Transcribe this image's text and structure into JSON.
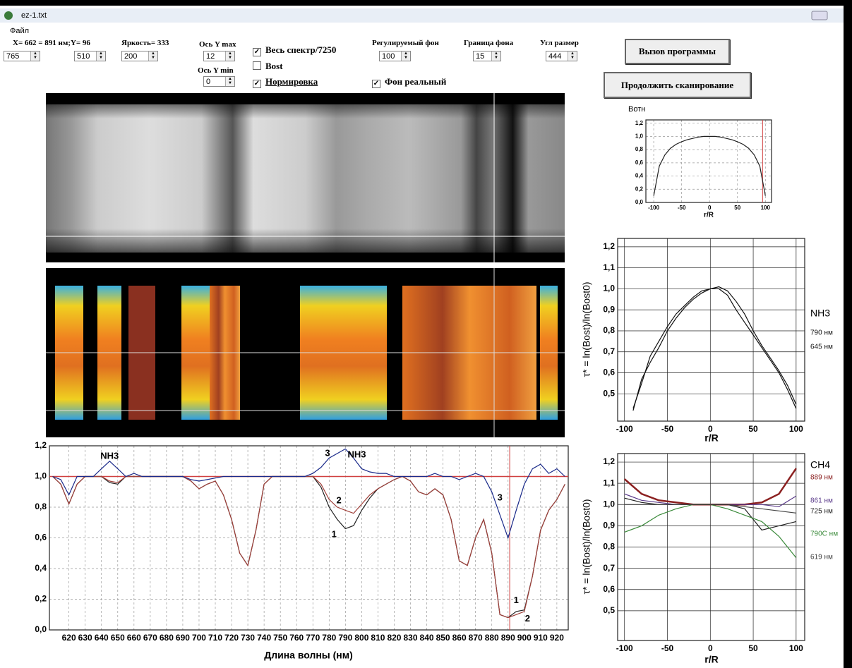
{
  "ui": {
    "window": {
      "title": "ez-1.txt"
    },
    "menu": [
      "Файл"
    ],
    "status": "X= 662 = 891 нм;Y= 96",
    "spinners": [
      {
        "value": 765
      },
      {
        "value": 510
      },
      {
        "label": "Яркость= 333",
        "value": 200
      },
      {
        "label": "Ось Y max",
        "value": 12
      },
      {
        "label": "Ось Y min",
        "value": 0
      },
      {
        "label": "Регулируемый фон",
        "value": 100
      },
      {
        "label": "Граница фона",
        "value": 15
      },
      {
        "label": "Угл размер",
        "value": 444
      }
    ],
    "checkboxes": [
      {
        "label": "Весь спектр/7250",
        "checked": true
      },
      {
        "label": "Bost",
        "checked": false
      },
      {
        "label": "Нормировка",
        "checked": true
      },
      {
        "label": "Фон реальный",
        "checked": true
      }
    ],
    "buttons": [
      "Вызов программы",
      "Продолжить сканирование"
    ]
  },
  "chart_data": [
    {
      "type": "line",
      "xlabel": "Длина волны (нм)",
      "grid": "dashed",
      "xlim": [
        608,
        927
      ],
      "xticks": [
        620,
        630,
        640,
        650,
        660,
        670,
        680,
        690,
        700,
        710,
        720,
        730,
        740,
        750,
        760,
        770,
        780,
        790,
        800,
        810,
        820,
        830,
        840,
        850,
        860,
        870,
        880,
        890,
        900,
        910,
        920
      ],
      "ylim": [
        0,
        1.2
      ],
      "yticks": [
        {
          "value": 0,
          "label": "0,0"
        },
        {
          "value": 0.2,
          "label": "0,2"
        },
        {
          "value": 0.4,
          "label": "0,4"
        },
        {
          "value": 0.6,
          "label": "0,6"
        },
        {
          "value": 0.8,
          "label": "0,8"
        },
        {
          "value": 1.0,
          "label": "1,0"
        },
        {
          "value": 1.2,
          "label": "1,2"
        }
      ],
      "hline": 1.0,
      "vline": 891,
      "ref_color": "#d04040",
      "x": [
        610,
        615,
        620,
        625,
        630,
        635,
        640,
        645,
        650,
        655,
        660,
        665,
        670,
        675,
        680,
        685,
        690,
        695,
        700,
        705,
        710,
        715,
        720,
        725,
        730,
        735,
        740,
        745,
        750,
        755,
        760,
        765,
        770,
        775,
        780,
        785,
        790,
        795,
        800,
        805,
        810,
        815,
        820,
        825,
        830,
        835,
        840,
        845,
        850,
        855,
        860,
        865,
        870,
        875,
        880,
        885,
        890,
        895,
        900,
        905,
        910,
        915,
        920,
        925
      ],
      "series": [
        {
          "color": "#222222",
          "values": [
            1.0,
            0.95,
            0.82,
            0.95,
            1.0,
            1.0,
            1.0,
            0.96,
            0.95,
            1.0,
            1.0,
            1.0,
            1.0,
            1.0,
            1.0,
            1.0,
            1.0,
            0.97,
            0.92,
            0.95,
            0.97,
            0.88,
            0.72,
            0.5,
            0.42,
            0.65,
            0.95,
            1.0,
            1.0,
            1.0,
            1.0,
            1.0,
            1.0,
            0.93,
            0.8,
            0.72,
            0.66,
            0.68,
            0.78,
            0.86,
            0.92,
            0.95,
            0.98,
            1.0,
            0.97,
            0.9,
            0.88,
            0.92,
            0.88,
            0.72,
            0.45,
            0.42,
            0.6,
            0.72,
            0.5,
            0.1,
            0.08,
            0.12,
            0.13,
            0.35,
            0.65,
            0.78,
            0.85,
            0.95
          ]
        },
        {
          "color": "#a0403a",
          "values": [
            1.0,
            0.95,
            0.82,
            0.95,
            1.0,
            1.0,
            1.0,
            0.97,
            0.96,
            1.0,
            1.0,
            1.0,
            1.0,
            1.0,
            1.0,
            1.0,
            1.0,
            0.97,
            0.92,
            0.95,
            0.97,
            0.88,
            0.72,
            0.5,
            0.42,
            0.65,
            0.95,
            1.0,
            1.0,
            1.0,
            1.0,
            1.0,
            1.0,
            0.95,
            0.85,
            0.8,
            0.78,
            0.76,
            0.82,
            0.88,
            0.92,
            0.95,
            0.98,
            1.0,
            0.97,
            0.9,
            0.88,
            0.92,
            0.88,
            0.72,
            0.45,
            0.42,
            0.6,
            0.72,
            0.5,
            0.1,
            0.08,
            0.1,
            0.12,
            0.35,
            0.65,
            0.78,
            0.85,
            0.95
          ]
        },
        {
          "color": "#1a2a8a",
          "values": [
            1.0,
            0.98,
            0.88,
            1.0,
            1.0,
            1.0,
            1.05,
            1.1,
            1.05,
            1.0,
            1.02,
            1.0,
            1.0,
            1.0,
            1.0,
            1.0,
            1.0,
            0.98,
            0.97,
            0.98,
            0.99,
            1.0,
            1.0,
            1.0,
            1.0,
            1.0,
            1.0,
            1.0,
            1.0,
            1.0,
            1.0,
            1.0,
            1.02,
            1.06,
            1.12,
            1.15,
            1.18,
            1.12,
            1.05,
            1.03,
            1.02,
            1.02,
            1.0,
            1.0,
            1.0,
            1.0,
            1.0,
            1.02,
            1.0,
            1.0,
            0.98,
            1.0,
            1.02,
            1.0,
            0.9,
            0.75,
            0.6,
            0.78,
            0.95,
            1.05,
            1.08,
            1.02,
            1.05,
            1.0
          ]
        }
      ],
      "annotations": [
        "NH3",
        "3",
        "NH3",
        "2",
        "1",
        "3",
        "1",
        "2"
      ]
    },
    {
      "type": "line",
      "title": "Bотн",
      "xlabel": "r/R",
      "grid": "dashed",
      "xlim": [
        -114,
        111
      ],
      "xticks": [
        -100,
        -50,
        0,
        50,
        100
      ],
      "ylim": [
        0,
        1.25
      ],
      "yticks": [
        {
          "value": 0,
          "label": "0,0"
        },
        {
          "value": 0.2,
          "label": "0,2"
        },
        {
          "value": 0.4,
          "label": "0,4"
        },
        {
          "value": 0.6,
          "label": "0,6"
        },
        {
          "value": 0.8,
          "label": "0,8"
        },
        {
          "value": 1.0,
          "label": "1,0"
        },
        {
          "value": 1.2,
          "label": "1,2"
        }
      ],
      "vline": 95,
      "ref_color": "#d04040",
      "x": [
        -100,
        -90,
        -80,
        -70,
        -60,
        -50,
        -40,
        -30,
        -20,
        -10,
        0,
        10,
        20,
        30,
        40,
        50,
        60,
        70,
        80,
        90,
        100
      ],
      "series": [
        {
          "color": "#222222",
          "values": [
            0.1,
            0.55,
            0.72,
            0.82,
            0.88,
            0.92,
            0.95,
            0.97,
            0.99,
            1.0,
            1.0,
            1.0,
            0.99,
            0.97,
            0.95,
            0.92,
            0.88,
            0.82,
            0.72,
            0.55,
            0.1
          ]
        }
      ]
    },
    {
      "type": "line",
      "xlabel": "r/R",
      "ylabel": "τ* = ln(Bost)/ln(Bost0)",
      "grid": "solid",
      "legend_title": "NH3",
      "xlim": [
        -108,
        110
      ],
      "xticks": [
        -100,
        -50,
        0,
        50,
        100
      ],
      "ylim": [
        0.37,
        1.24
      ],
      "yticks": [
        {
          "value": 0.5,
          "label": "0,5"
        },
        {
          "value": 0.6,
          "label": "0,6"
        },
        {
          "value": 0.7,
          "label": "0,7"
        },
        {
          "value": 0.8,
          "label": "0,8"
        },
        {
          "value": 0.9,
          "label": "0,9"
        },
        {
          "value": 1.0,
          "label": "1,0"
        },
        {
          "value": 1.1,
          "label": "1,1"
        },
        {
          "value": 1.2,
          "label": "1,2"
        }
      ],
      "x": [
        -90,
        -80,
        -70,
        -60,
        -50,
        -40,
        -30,
        -20,
        -10,
        0,
        10,
        20,
        30,
        40,
        50,
        60,
        70,
        80,
        90,
        100
      ],
      "series": [
        {
          "name": "790 нм",
          "color": "#111111",
          "values": [
            0.42,
            0.57,
            0.65,
            0.72,
            0.8,
            0.86,
            0.91,
            0.95,
            0.98,
            1.0,
            1.0,
            0.97,
            0.9,
            0.84,
            0.78,
            0.72,
            0.66,
            0.6,
            0.52,
            0.43
          ]
        },
        {
          "name": "645 нм",
          "color": "#111111",
          "values": [
            0.43,
            0.55,
            0.68,
            0.75,
            0.82,
            0.88,
            0.92,
            0.96,
            0.99,
            1.0,
            1.01,
            0.99,
            0.94,
            0.88,
            0.8,
            0.73,
            0.67,
            0.61,
            0.54,
            0.45
          ]
        }
      ]
    },
    {
      "type": "line",
      "xlabel": "r/R",
      "ylabel": "τ* = ln(Bost)/ln(Bost0)",
      "grid": "solid",
      "legend_title": "CH4",
      "xlim": [
        -108,
        110
      ],
      "xticks": [
        -100,
        -50,
        0,
        50,
        100
      ],
      "ylim": [
        0.36,
        1.24
      ],
      "yticks": [
        {
          "value": 0.5,
          "label": "0,5"
        },
        {
          "value": 0.6,
          "label": "0,6"
        },
        {
          "value": 0.7,
          "label": "0,7"
        },
        {
          "value": 0.8,
          "label": "0,8"
        },
        {
          "value": 0.9,
          "label": "0,9"
        },
        {
          "value": 1.0,
          "label": "1,0"
        },
        {
          "value": 1.1,
          "label": "1,1"
        },
        {
          "value": 1.2,
          "label": "1,2"
        }
      ],
      "x": [
        -100,
        -80,
        -60,
        -40,
        -20,
        0,
        20,
        40,
        60,
        80,
        100
      ],
      "series": [
        {
          "name": "889 нм",
          "color": "#8b2020",
          "values": [
            1.12,
            1.05,
            1.02,
            1.01,
            1.0,
            1.0,
            1.0,
            1.0,
            1.01,
            1.05,
            1.17
          ]
        },
        {
          "name": "861 нм",
          "color": "#5a3a8a",
          "values": [
            1.05,
            1.02,
            1.01,
            1.0,
            1.0,
            1.0,
            1.0,
            1.0,
            1.0,
            0.99,
            1.04
          ]
        },
        {
          "name": "725 нм",
          "color": "#222222",
          "values": [
            1.03,
            1.01,
            1.0,
            1.0,
            1.0,
            1.0,
            1.0,
            0.98,
            0.88,
            0.9,
            0.92
          ]
        },
        {
          "name": "790С нм",
          "color": "#3a8a3a",
          "values": [
            0.87,
            0.9,
            0.95,
            0.98,
            1.0,
            1.0,
            0.98,
            0.95,
            0.92,
            0.85,
            0.75
          ]
        },
        {
          "name": "619 нм",
          "color": "#444444",
          "values": [
            1.0,
            1.0,
            1.0,
            1.0,
            1.0,
            1.0,
            1.0,
            0.99,
            0.98,
            0.97,
            0.96
          ]
        }
      ]
    }
  ]
}
